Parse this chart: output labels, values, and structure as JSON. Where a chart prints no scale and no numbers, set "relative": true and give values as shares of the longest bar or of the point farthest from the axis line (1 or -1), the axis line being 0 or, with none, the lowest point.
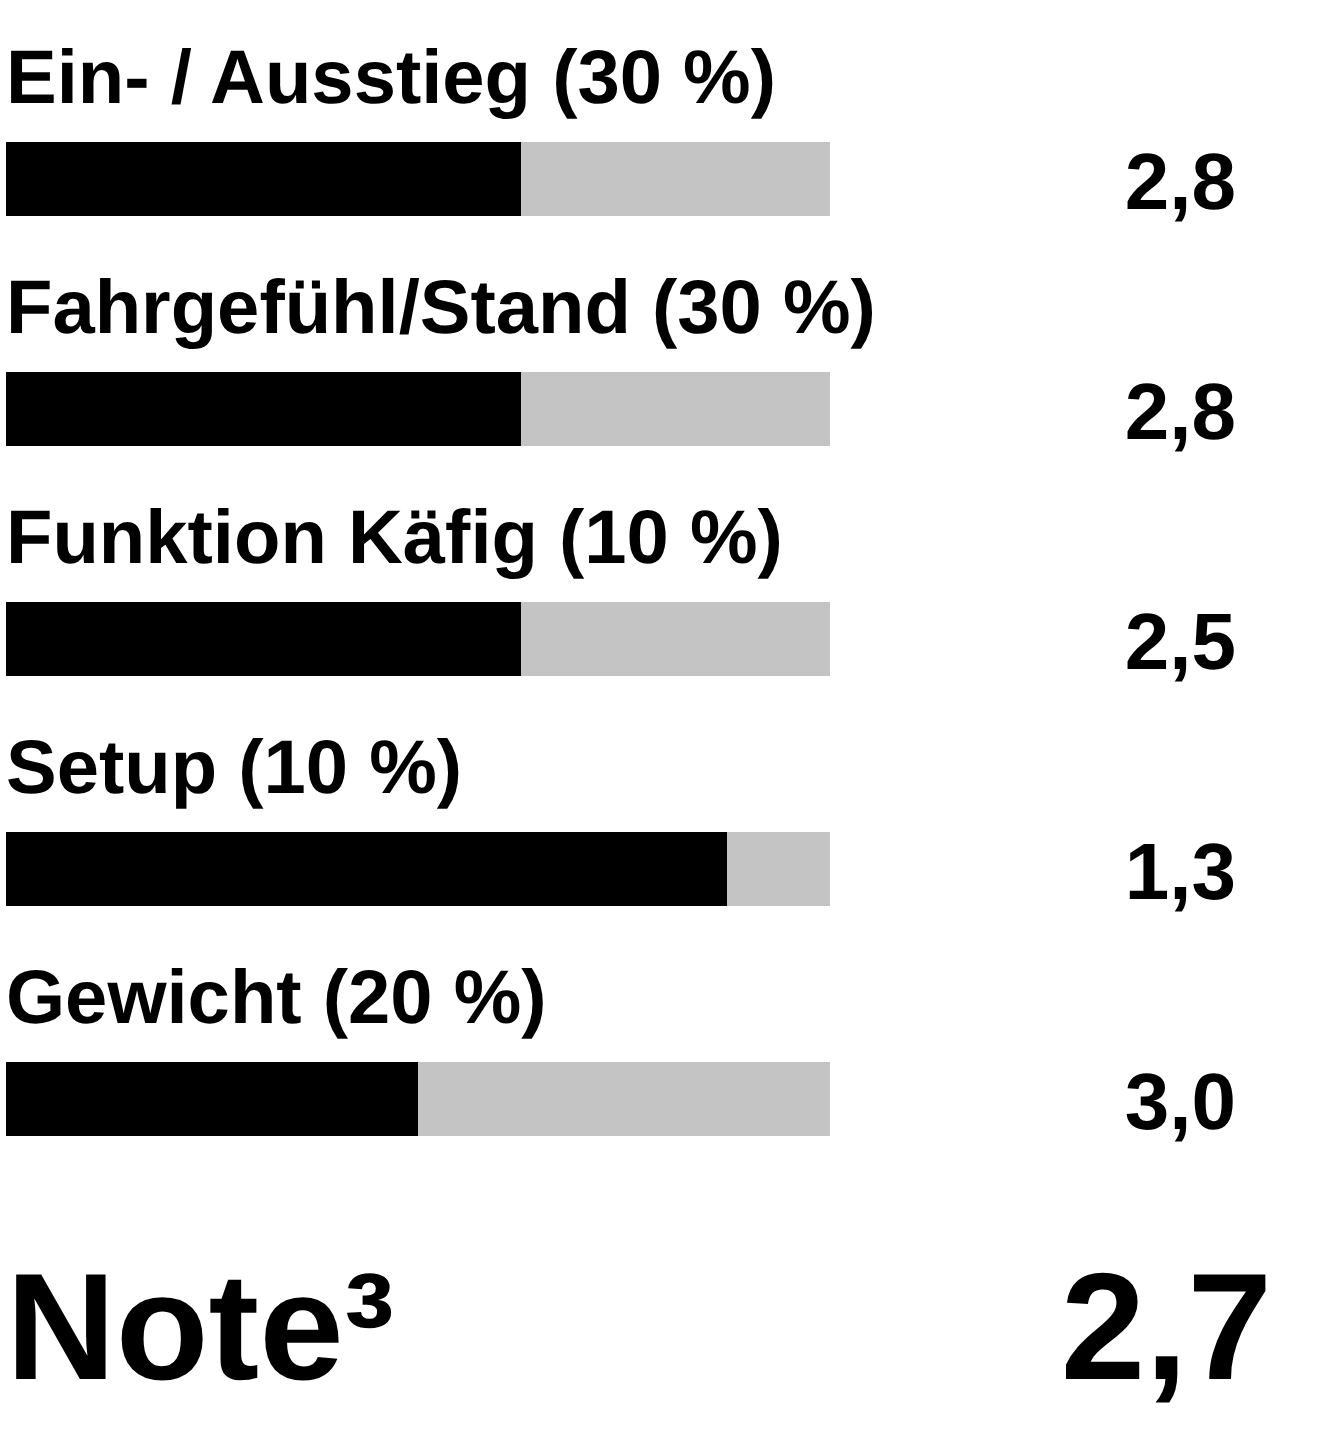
{
  "chart_data": {
    "type": "bar",
    "orientation": "horizontal",
    "stacked": true,
    "relative": true,
    "categories": [
      "Ein- / Ausstieg (30 %)",
      "Fahrgefühl/Stand (30 %)",
      "Funktion Käfig (10 %)",
      "Setup (10 %)",
      "Gewicht (20 %)"
    ],
    "series": [
      {
        "color": "#000000",
        "values": [
          0.625,
          0.625,
          0.625,
          0.875,
          0.5
        ]
      },
      {
        "color": "#c4c4c4",
        "values": [
          0.375,
          0.375,
          0.375,
          0.125,
          0.5
        ]
      }
    ],
    "annotations": [
      "2,8",
      "2,8",
      "2,5",
      "1,3",
      "3,0",
      "Note³",
      "2,7"
    ]
  }
}
